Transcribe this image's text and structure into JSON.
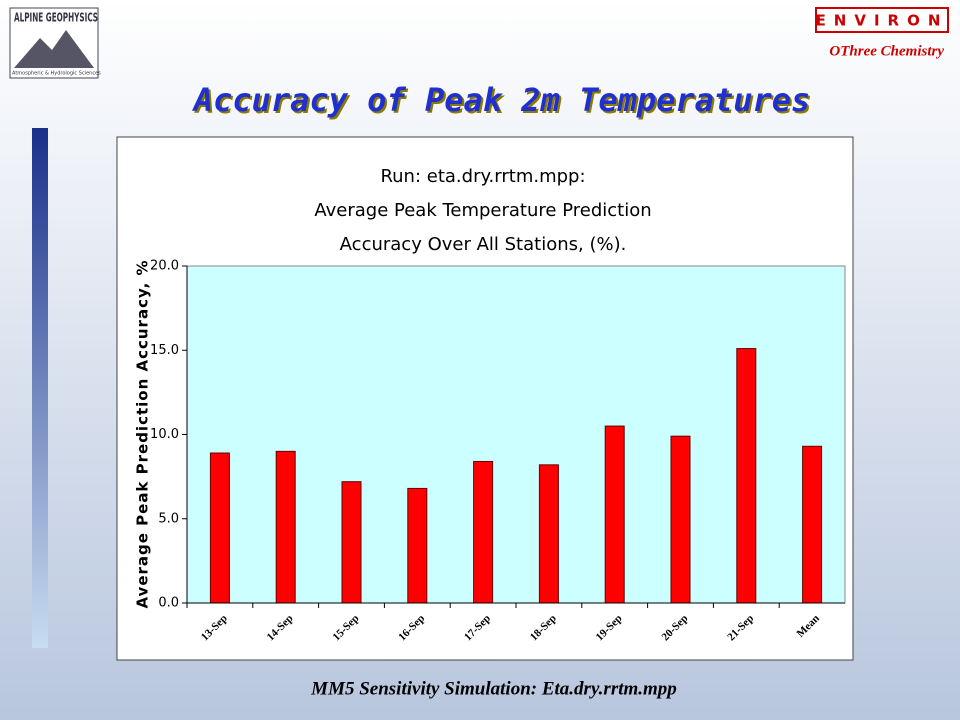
{
  "header": {
    "logo_name": "ALPINE GEOPHYSICS",
    "logo_tagline": "Atmospheric & Hydrologic Sciences",
    "company": "ENVIRON",
    "division": "OThree Chemistry"
  },
  "slide_title": "Accuracy of Peak 2m Temperatures",
  "footer": "MM5 Sensitivity Simulation:  Eta.dry.rrtm.mpp",
  "chart_data": {
    "type": "bar",
    "title": [
      "Run: eta.dry.rrtm.mpp:",
      "Average Peak Temperature Prediction",
      "Accuracy Over All Stations, (%)."
    ],
    "y_label": "Average Peak Prediction Accuracy, %",
    "categories": [
      "13-Sep",
      "14-Sep",
      "15-Sep",
      "16-Sep",
      "17-Sep",
      "18-Sep",
      "19-Sep",
      "20-Sep",
      "21-Sep",
      "Mean"
    ],
    "values": [
      8.9,
      9.0,
      7.2,
      6.8,
      8.4,
      8.2,
      10.5,
      9.9,
      15.1,
      9.3
    ],
    "color": "#ff0000",
    "ylim": [
      0,
      20
    ],
    "yticks": [
      {
        "value": 0,
        "label": "0.0"
      },
      {
        "value": 5,
        "label": "5.0"
      },
      {
        "value": 10,
        "label": "10.0"
      },
      {
        "value": 15,
        "label": "15.0"
      },
      {
        "value": 20,
        "label": "20.0"
      }
    ],
    "plot_background": "#ccffff"
  }
}
